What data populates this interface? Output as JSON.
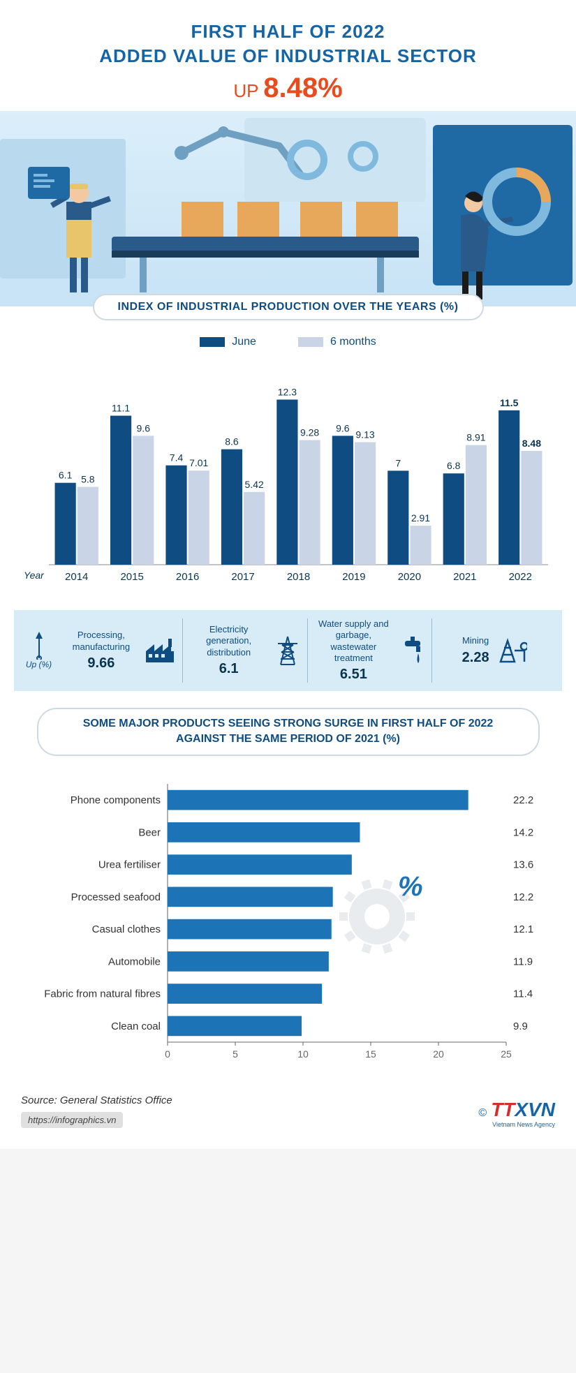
{
  "header": {
    "line1": "FIRST HALF OF 2022",
    "line2": "ADDED VALUE OF INDUSTRIAL SECTOR",
    "up_word": "UP",
    "pct": "8.48%",
    "title_color": "#1565a6",
    "up_color": "#e84c1e"
  },
  "illustration": {
    "bg_top": "#dbeefa",
    "bg_bottom": "#c7e3f5",
    "box_color": "#e8a85c",
    "belt_color": "#2a5a8a",
    "machine_color": "#1f6aa5",
    "worker_overall": "#e8c56a",
    "worker_shirt": "#2a5a8a"
  },
  "index_section": {
    "pill_label": "INDEX OF INDUSTRIAL PRODUCTION OVER THE YEARS (%)",
    "legend": [
      {
        "label": "June",
        "color": "#0f4c81"
      },
      {
        "label": "6 months",
        "color": "#c9d5e6"
      }
    ],
    "year_axis_label": "Year",
    "chart": {
      "type": "grouped_bar",
      "years": [
        "2014",
        "2015",
        "2016",
        "2017",
        "2018",
        "2019",
        "2020",
        "2021",
        "2022"
      ],
      "series": {
        "june": [
          6.1,
          11.1,
          7.4,
          8.6,
          12.3,
          9.6,
          7.0,
          6.8,
          11.5
        ],
        "months6": [
          5.8,
          9.6,
          7.01,
          5.42,
          9.28,
          9.13,
          2.91,
          8.91,
          8.48
        ]
      },
      "ylim": [
        0,
        13
      ],
      "bar_colors": {
        "june": "#0f4c81",
        "months6": "#c9d5e6"
      },
      "label_color": "#0a3550",
      "label_fontsize": 14,
      "year_color": "#0a3550",
      "last_label_bold": true,
      "background": "#ffffff",
      "bar_width": 0.38,
      "group_gap": 0.24
    }
  },
  "sectors": {
    "up_label": "Up (%)",
    "bg": "#d7ecf6",
    "divider": "#9bb8cc",
    "text_color": "#0f4c81",
    "items": [
      {
        "label": "Processing, manufacturing",
        "value": "9.66",
        "icon": "factory"
      },
      {
        "label": "Electricity generation, distribution",
        "value": "6.1",
        "icon": "pylon"
      },
      {
        "label": "Water supply and garbage, wastewater treatment",
        "value": "6.51",
        "icon": "tap"
      },
      {
        "label": "Mining",
        "value": "2.28",
        "icon": "derrick"
      }
    ]
  },
  "products_section": {
    "pill_label_l1": "SOME MAJOR PRODUCTS SEEING STRONG SURGE IN FIRST HALF OF 2022",
    "pill_label_l2": "AGAINST THE SAME PERIOD OF 2021 (%)",
    "chart": {
      "type": "horizontal_bar",
      "categories": [
        "Phone components",
        "Beer",
        "Urea fertiliser",
        "Processed seafood",
        "Casual clothes",
        "Automobile",
        "Fabric from natural fibres",
        "Clean coal"
      ],
      "values": [
        22.2,
        14.2,
        13.6,
        12.2,
        12.1,
        11.9,
        11.4,
        9.9
      ],
      "xlim": [
        0,
        25
      ],
      "xtick_step": 5,
      "bar_color": "#1c73b6",
      "label_color": "#333333",
      "value_color": "#333333",
      "axis_color": "#666666",
      "bar_height": 0.62,
      "fontsize": 15
    }
  },
  "footer": {
    "source": "Source: General Statistics Office",
    "site": "https://infographics.vn",
    "copyright": "©",
    "logo_tt": "TT",
    "logo_xvn": "XVN",
    "logo_sub": "Vietnam News Agency"
  }
}
